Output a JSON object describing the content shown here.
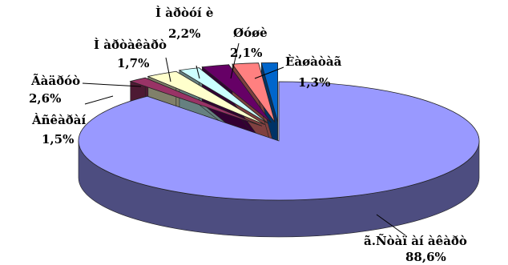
{
  "chart_data": {
    "type": "pie",
    "style": "3d-exploded",
    "title": "",
    "legend": "none",
    "slices": [
      {
        "name": "ã.Ñòàï àí àêàðò",
        "value": 88.6,
        "label": "88,6%",
        "color": "#9999ff",
        "side": "#4d4d80",
        "exploded": false
      },
      {
        "name": "Àñêàðàí",
        "value": 1.5,
        "label": "1,5%",
        "color": "#993366",
        "side": "#4d1a33",
        "exploded": true
      },
      {
        "name": "Ãàäðóò",
        "value": 2.6,
        "label": "2,6%",
        "color": "#ffffcc",
        "side": "#80806a",
        "exploded": true
      },
      {
        "name": "Ì àðòàêàðò",
        "value": 1.7,
        "label": "1,7%",
        "color": "#ccffff",
        "side": "#668080",
        "exploded": true
      },
      {
        "name": "Ì àðòóí è",
        "value": 2.2,
        "label": "2,2%",
        "color": "#660066",
        "side": "#330033",
        "exploded": true
      },
      {
        "name": "Øóøè",
        "value": 2.1,
        "label": "2,1%",
        "color": "#ff8080",
        "side": "#804040",
        "exploded": true
      },
      {
        "name": "Èàøàòàã",
        "value": 1.3,
        "label": "1,3%",
        "color": "#0066cc",
        "side": "#003366",
        "exploded": true
      }
    ]
  }
}
